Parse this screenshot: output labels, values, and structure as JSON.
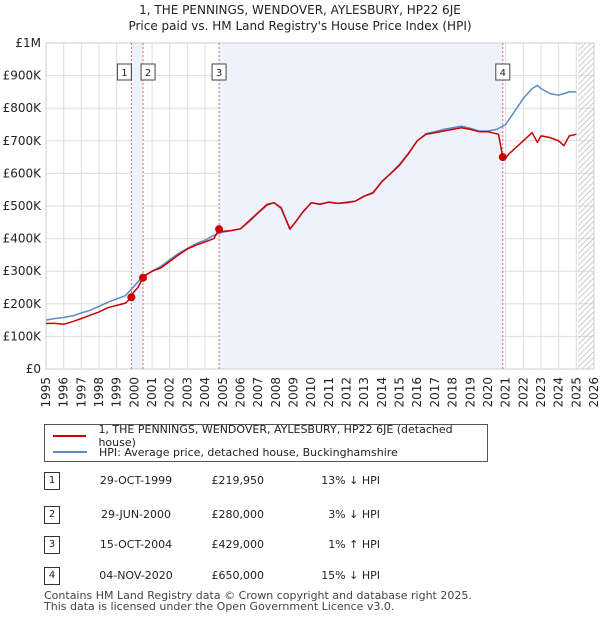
{
  "chart_data": {
    "type": "line",
    "title": "1, THE PENNINGS, WENDOVER, AYLESBURY, HP22 6JE",
    "subtitle": "Price paid vs. HM Land Registry's House Price Index (HPI)",
    "xlabel": "",
    "ylabel": "",
    "xlim": [
      1995,
      2026
    ],
    "ylim": [
      0,
      1000000
    ],
    "grid": true,
    "x_ticks": [
      "1995",
      "1996",
      "1997",
      "1998",
      "1999",
      "2000",
      "2001",
      "2002",
      "2003",
      "2004",
      "2005",
      "2006",
      "2007",
      "2008",
      "2009",
      "2010",
      "2011",
      "2012",
      "2013",
      "2014",
      "2015",
      "2016",
      "2017",
      "2018",
      "2019",
      "2020",
      "2021",
      "2022",
      "2023",
      "2024",
      "2025",
      "2026"
    ],
    "y_ticks": [
      {
        "value": 0,
        "label": "£0"
      },
      {
        "value": 100000,
        "label": "£100K"
      },
      {
        "value": 200000,
        "label": "£200K"
      },
      {
        "value": 300000,
        "label": "£300K"
      },
      {
        "value": 400000,
        "label": "£400K"
      },
      {
        "value": 500000,
        "label": "£500K"
      },
      {
        "value": 600000,
        "label": "£600K"
      },
      {
        "value": 700000,
        "label": "£700K"
      },
      {
        "value": 800000,
        "label": "£800K"
      },
      {
        "value": 900000,
        "label": "£900K"
      },
      {
        "value": 1000000,
        "label": "£1M"
      }
    ],
    "series": [
      {
        "name": "1, THE PENNINGS, WENDOVER, AYLESBURY, HP22 6JE (detached house)",
        "color": "#cc0000",
        "x": [
          1995.0,
          1995.5,
          1996.0,
          1996.5,
          1997.0,
          1997.5,
          1998.0,
          1998.5,
          1999.0,
          1999.5,
          1999.83,
          1999.9,
          2000.2,
          2000.49,
          2000.7,
          2001.0,
          2001.5,
          2002.0,
          2002.5,
          2003.0,
          2003.5,
          2004.0,
          2004.5,
          2004.79,
          2005.0,
          2005.5,
          2006.0,
          2006.5,
          2007.0,
          2007.5,
          2007.9,
          2008.3,
          2008.8,
          2009.1,
          2009.5,
          2010.0,
          2010.5,
          2011.0,
          2011.5,
          2012.0,
          2012.5,
          2013.0,
          2013.5,
          2014.0,
          2014.5,
          2015.0,
          2015.5,
          2016.0,
          2016.5,
          2017.0,
          2017.5,
          2018.0,
          2018.5,
          2019.0,
          2019.5,
          2020.0,
          2020.6,
          2020.84,
          2020.9,
          2021.2,
          2021.6,
          2022.0,
          2022.5,
          2022.8,
          2023.0,
          2023.5,
          2024.0,
          2024.3,
          2024.6,
          2025.0
        ],
        "values": [
          140000,
          140000,
          137000,
          145000,
          155000,
          165000,
          175000,
          188000,
          195000,
          202000,
          219950,
          232000,
          250000,
          280000,
          290000,
          300000,
          310000,
          330000,
          350000,
          368000,
          380000,
          390000,
          400000,
          429000,
          422000,
          425000,
          430000,
          455000,
          480000,
          505000,
          510000,
          495000,
          430000,
          450000,
          480000,
          510000,
          505000,
          512000,
          508000,
          510000,
          515000,
          530000,
          540000,
          575000,
          600000,
          625000,
          660000,
          700000,
          720000,
          725000,
          730000,
          735000,
          740000,
          735000,
          728000,
          728000,
          720000,
          650000,
          640000,
          660000,
          680000,
          700000,
          725000,
          695000,
          715000,
          710000,
          700000,
          685000,
          715000,
          720000
        ]
      },
      {
        "name": "HPI: Average price, detached house, Buckinghamshire",
        "color": "#5b8ac6",
        "x": [
          1995.0,
          1995.5,
          1996.0,
          1996.5,
          1997.0,
          1997.5,
          1998.0,
          1998.5,
          1999.0,
          1999.5,
          2000.0,
          2000.5,
          2001.0,
          2001.5,
          2002.0,
          2002.5,
          2003.0,
          2003.5,
          2004.0,
          2004.5,
          2005.0,
          2005.5,
          2006.0,
          2006.5,
          2007.0,
          2007.5,
          2007.9,
          2008.3,
          2008.8,
          2009.1,
          2009.5,
          2010.0,
          2010.5,
          2011.0,
          2011.5,
          2012.0,
          2012.5,
          2013.0,
          2013.5,
          2014.0,
          2014.5,
          2015.0,
          2015.5,
          2016.0,
          2016.5,
          2017.0,
          2017.5,
          2018.0,
          2018.5,
          2019.0,
          2019.5,
          2020.0,
          2020.5,
          2021.0,
          2021.5,
          2022.0,
          2022.5,
          2022.8,
          2023.0,
          2023.5,
          2024.0,
          2024.3,
          2024.6,
          2025.0
        ],
        "values": [
          150000,
          155000,
          158000,
          163000,
          172000,
          180000,
          192000,
          205000,
          215000,
          225000,
          255000,
          285000,
          300000,
          315000,
          335000,
          355000,
          370000,
          385000,
          395000,
          410000,
          420000,
          425000,
          430000,
          452000,
          478000,
          502000,
          510000,
          492000,
          428000,
          450000,
          478000,
          510000,
          506000,
          512000,
          508000,
          512000,
          515000,
          530000,
          542000,
          575000,
          600000,
          628000,
          662000,
          700000,
          722000,
          728000,
          735000,
          740000,
          745000,
          738000,
          730000,
          730000,
          735000,
          750000,
          790000,
          830000,
          860000,
          870000,
          860000,
          845000,
          840000,
          845000,
          850000,
          850000
        ]
      }
    ],
    "sales": [
      {
        "num": "1",
        "x": 1999.83,
        "value": 219950
      },
      {
        "num": "2",
        "x": 2000.49,
        "value": 280000
      },
      {
        "num": "3",
        "x": 2004.79,
        "value": 429000
      },
      {
        "num": "4",
        "x": 2020.84,
        "value": 650000
      }
    ]
  },
  "legend": {
    "property_label": "1, THE PENNINGS, WENDOVER, AYLESBURY, HP22 6JE (detached house)",
    "hpi_label": "HPI: Average price, detached house, Buckinghamshire"
  },
  "sales_table": [
    {
      "num": "1",
      "date": "29-OCT-1999",
      "price": "£219,950",
      "hpi": "13% ↓ HPI"
    },
    {
      "num": "2",
      "date": "29-JUN-2000",
      "price": "£280,000",
      "hpi": "3% ↓ HPI"
    },
    {
      "num": "3",
      "date": "15-OCT-2004",
      "price": "£429,000",
      "hpi": "1% ↑ HPI"
    },
    {
      "num": "4",
      "date": "04-NOV-2020",
      "price": "£650,000",
      "hpi": "15% ↓ HPI"
    }
  ],
  "footer": {
    "line1": "Contains HM Land Registry data © Crown copyright and database right 2025.",
    "line2": "This data is licensed under the Open Government Licence v3.0."
  }
}
